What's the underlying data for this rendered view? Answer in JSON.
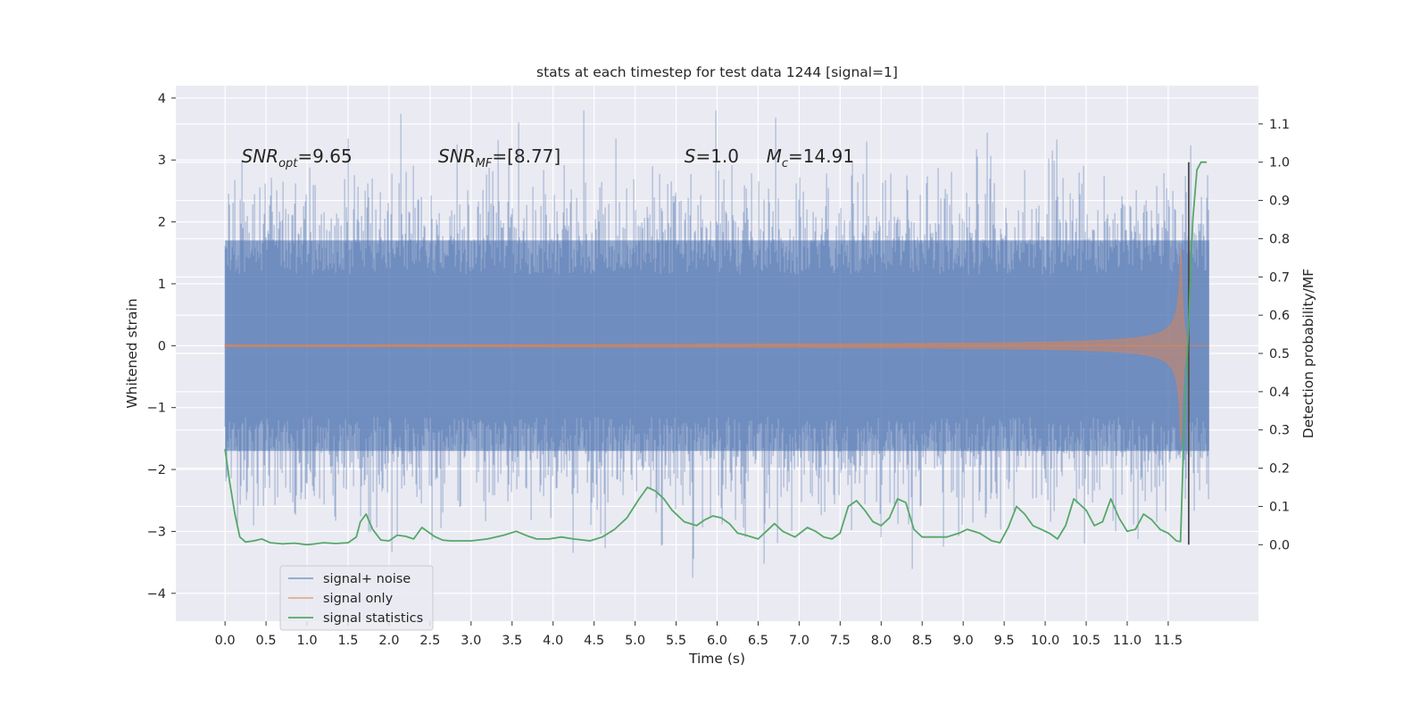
{
  "chart_data": {
    "type": "line",
    "title": "stats at each timestep for test data 1244 [signal=1]",
    "xlabel": "Time (s)",
    "ylabel": "Whitened strain",
    "ylabel_right": "Detection probability/MF",
    "xlim": [
      -0.6,
      12.6
    ],
    "ylim": [
      -4.45,
      4.2
    ],
    "ylim_right": [
      -0.2,
      1.2
    ],
    "x_ticks": [
      0.0,
      0.5,
      1.0,
      1.5,
      2.0,
      2.5,
      3.0,
      3.5,
      4.0,
      4.5,
      5.0,
      5.5,
      6.0,
      6.5,
      7.0,
      7.5,
      8.0,
      8.5,
      9.0,
      9.5,
      10.0,
      10.5,
      11.0,
      11.5
    ],
    "x_tick_labels": [
      "0.0",
      "0.5",
      "1.0",
      "1.5",
      "2.0",
      "2.5",
      "3.0",
      "3.5",
      "4.0",
      "4.5",
      "5.0",
      "5.5",
      "6.0",
      "6.5",
      "7.0",
      "7.5",
      "8.0",
      "8.5",
      "9.0",
      "9.5",
      "10.0",
      "10.5",
      "11.0",
      "11.5"
    ],
    "y_ticks": [
      -4,
      -3,
      -2,
      -1,
      0,
      1,
      2,
      3,
      4
    ],
    "y_tick_labels": [
      "−4",
      "−3",
      "−2",
      "−1",
      "0",
      "1",
      "2",
      "3",
      "4"
    ],
    "y_right_ticks": [
      0.0,
      0.1,
      0.2,
      0.3,
      0.4,
      0.5,
      0.6,
      0.7,
      0.8,
      0.9,
      1.0,
      1.1
    ],
    "y_right_tick_labels": [
      "0.0",
      "0.1",
      "0.2",
      "0.3",
      "0.4",
      "0.5",
      "0.6",
      "0.7",
      "0.8",
      "0.9",
      "1.0",
      "1.1"
    ],
    "annotations": [
      {
        "id": "snr-opt",
        "x": 0.2,
        "y": 3.0,
        "text": "SNR_opt=9.65"
      },
      {
        "id": "snr-mf",
        "x": 2.6,
        "y": 3.0,
        "text": "SNR_MF=[8.77]"
      },
      {
        "id": "s",
        "x": 5.6,
        "y": 3.0,
        "text": "S=1.0"
      },
      {
        "id": "mc",
        "x": 6.6,
        "y": 3.0,
        "text": "M_c=14.91"
      }
    ],
    "colors": {
      "noise": "#4c72b0",
      "signal": "#dd8452",
      "stats": "#55a868",
      "background": "#eaeaf2",
      "grid": "#ffffff",
      "vline": "#4d4d4d"
    },
    "series": [
      {
        "id": "noise",
        "name": "signal+ noise",
        "axis": "left",
        "kind": "noise",
        "x_range": [
          0.0,
          12.0
        ],
        "typical_amplitude": [
          -1.7,
          1.7
        ],
        "peak_range": [
          -4.1,
          3.8
        ]
      },
      {
        "id": "signal",
        "name": "signal only",
        "axis": "left",
        "kind": "chirp",
        "x_range": [
          0.0,
          11.75
        ],
        "merger_time": 11.65,
        "peak_amplitude": 2.1
      },
      {
        "id": "stats",
        "name": "signal statistics",
        "axis": "right",
        "x": [
          0.0,
          0.06,
          0.12,
          0.18,
          0.25,
          0.35,
          0.45,
          0.55,
          0.7,
          0.85,
          1.0,
          1.1,
          1.2,
          1.35,
          1.5,
          1.6,
          1.65,
          1.72,
          1.8,
          1.9,
          2.0,
          2.1,
          2.2,
          2.3,
          2.4,
          2.55,
          2.65,
          2.75,
          2.9,
          3.0,
          3.2,
          3.4,
          3.55,
          3.7,
          3.8,
          3.95,
          4.1,
          4.25,
          4.45,
          4.6,
          4.75,
          4.9,
          5.05,
          5.15,
          5.25,
          5.35,
          5.45,
          5.6,
          5.75,
          5.85,
          5.95,
          6.05,
          6.15,
          6.25,
          6.35,
          6.5,
          6.6,
          6.7,
          6.8,
          6.95,
          7.1,
          7.2,
          7.3,
          7.4,
          7.5,
          7.6,
          7.7,
          7.8,
          7.9,
          8.0,
          8.1,
          8.2,
          8.3,
          8.4,
          8.5,
          8.6,
          8.8,
          8.95,
          9.05,
          9.2,
          9.35,
          9.45,
          9.55,
          9.65,
          9.75,
          9.85,
          9.95,
          10.05,
          10.15,
          10.25,
          10.35,
          10.5,
          10.6,
          10.7,
          10.8,
          10.9,
          11.0,
          11.1,
          11.2,
          11.3,
          11.4,
          11.5,
          11.6,
          11.65,
          11.7,
          11.75,
          11.8,
          11.85,
          11.9,
          11.97
        ],
        "values": [
          0.25,
          0.16,
          0.08,
          0.02,
          0.007,
          0.01,
          0.015,
          0.005,
          0.002,
          0.004,
          0.0,
          0.002,
          0.005,
          0.003,
          0.005,
          0.02,
          0.06,
          0.08,
          0.04,
          0.012,
          0.01,
          0.025,
          0.022,
          0.015,
          0.045,
          0.022,
          0.012,
          0.01,
          0.01,
          0.01,
          0.015,
          0.025,
          0.035,
          0.022,
          0.015,
          0.015,
          0.02,
          0.015,
          0.01,
          0.02,
          0.04,
          0.07,
          0.12,
          0.15,
          0.14,
          0.12,
          0.09,
          0.06,
          0.05,
          0.065,
          0.075,
          0.07,
          0.055,
          0.03,
          0.025,
          0.015,
          0.035,
          0.055,
          0.035,
          0.02,
          0.045,
          0.035,
          0.02,
          0.015,
          0.03,
          0.1,
          0.115,
          0.09,
          0.06,
          0.05,
          0.07,
          0.12,
          0.11,
          0.04,
          0.02,
          0.02,
          0.02,
          0.03,
          0.04,
          0.03,
          0.01,
          0.005,
          0.045,
          0.1,
          0.08,
          0.05,
          0.04,
          0.03,
          0.015,
          0.05,
          0.12,
          0.09,
          0.05,
          0.06,
          0.12,
          0.07,
          0.035,
          0.04,
          0.08,
          0.065,
          0.04,
          0.03,
          0.01,
          0.008,
          0.35,
          0.58,
          0.85,
          0.98,
          1.0,
          1.0
        ]
      }
    ],
    "vline": {
      "x": 11.75,
      "y_range": [
        0.0,
        1.0
      ],
      "axis": "right"
    },
    "legend": {
      "placement": "lower-left",
      "entries": [
        "signal+ noise",
        "signal only",
        "signal statistics"
      ]
    }
  }
}
